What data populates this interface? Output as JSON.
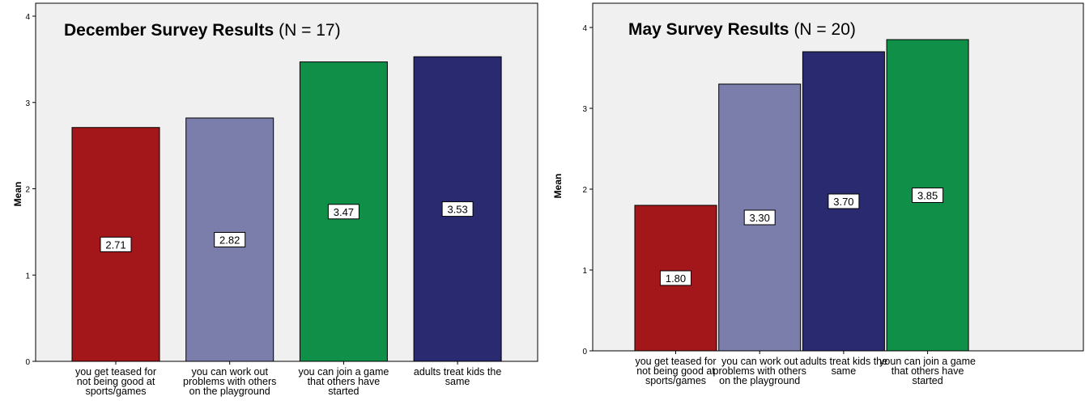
{
  "chart_data": [
    {
      "type": "bar",
      "title": "December Survey Results",
      "subtitle": "(N = 17)",
      "xlabel": "",
      "ylabel": "Mean",
      "ylim": [
        0,
        4
      ],
      "yticks": [
        "0",
        "1",
        "2",
        "3",
        "4"
      ],
      "grid": false,
      "categories": [
        [
          "you get teased for",
          "not being good at",
          "sports/games"
        ],
        [
          "you can work out",
          "problems with others",
          "on the playground"
        ],
        [
          "you can join a game",
          "that others have",
          "started"
        ],
        [
          "adults treat kids the",
          "same"
        ]
      ],
      "values": [
        2.71,
        2.82,
        3.47,
        3.53
      ],
      "value_labels": [
        "2.71",
        "2.82",
        "3.47",
        "3.53"
      ],
      "colors": [
        "#a3171b",
        "#7b7daa",
        "#0f8f48",
        "#292a70"
      ]
    },
    {
      "type": "bar",
      "title": "May Survey Results",
      "subtitle": "(N = 20)",
      "xlabel": "",
      "ylabel": "Mean",
      "ylim": [
        0,
        4
      ],
      "yticks": [
        "0",
        "1",
        "2",
        "3",
        "4"
      ],
      "grid": false,
      "categories": [
        [
          "you get teased for",
          "not being good at",
          "sports/games"
        ],
        [
          "you can work out",
          "problems with others",
          "on the playground"
        ],
        [
          "adults treat kids the",
          "same"
        ],
        [
          "youn can join a game",
          "that others have",
          "started"
        ]
      ],
      "values": [
        1.8,
        3.3,
        3.7,
        3.85
      ],
      "value_labels": [
        "1.80",
        "3.30",
        "3.70",
        "3.85"
      ],
      "colors": [
        "#a3171b",
        "#7b7daa",
        "#292a70",
        "#0f8f48"
      ]
    }
  ]
}
